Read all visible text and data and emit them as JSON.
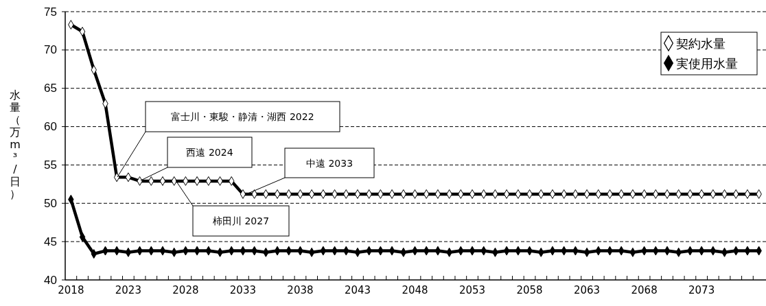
{
  "chart_data": {
    "type": "line",
    "ylabel": "水量（万m³/日）",
    "x": [
      2018,
      2019,
      2020,
      2021,
      2022,
      2023,
      2024,
      2025,
      2026,
      2027,
      2028,
      2029,
      2030,
      2031,
      2032,
      2033,
      2034,
      2035,
      2036,
      2037,
      2038,
      2039,
      2040,
      2041,
      2042,
      2043,
      2044,
      2045,
      2046,
      2047,
      2048,
      2049,
      2050,
      2051,
      2052,
      2053,
      2054,
      2055,
      2056,
      2057,
      2058,
      2059,
      2060,
      2061,
      2062,
      2063,
      2064,
      2065,
      2066,
      2067,
      2068,
      2069,
      2070,
      2071,
      2072,
      2073,
      2074,
      2075,
      2076,
      2077,
      2078
    ],
    "series": [
      {
        "name": "契約水量",
        "color": "#000000",
        "values": [
          73.3,
          72.4,
          67.4,
          63.0,
          53.4,
          53.4,
          52.9,
          52.9,
          52.9,
          52.9,
          52.9,
          52.9,
          52.9,
          52.9,
          52.9,
          51.2,
          51.2,
          51.2,
          51.2,
          51.2,
          51.2,
          51.2,
          51.2,
          51.2,
          51.2,
          51.2,
          51.2,
          51.2,
          51.2,
          51.2,
          51.2,
          51.2,
          51.2,
          51.2,
          51.2,
          51.2,
          51.2,
          51.2,
          51.2,
          51.2,
          51.2,
          51.2,
          51.2,
          51.2,
          51.2,
          51.2,
          51.2,
          51.2,
          51.2,
          51.2,
          51.2,
          51.2,
          51.2,
          51.2,
          51.2,
          51.2,
          51.2,
          51.2,
          51.2,
          51.2,
          51.2
        ]
      },
      {
        "name": "実使用水量",
        "color": "#000000",
        "values": [
          50.5,
          45.6,
          43.4,
          43.8,
          43.8,
          43.6,
          43.8,
          43.8,
          43.8,
          43.6,
          43.8,
          43.8,
          43.8,
          43.6,
          43.8,
          43.8,
          43.8,
          43.6,
          43.8,
          43.8,
          43.8,
          43.6,
          43.8,
          43.8,
          43.8,
          43.6,
          43.8,
          43.8,
          43.8,
          43.6,
          43.8,
          43.8,
          43.8,
          43.6,
          43.8,
          43.8,
          43.8,
          43.6,
          43.8,
          43.8,
          43.8,
          43.6,
          43.8,
          43.8,
          43.8,
          43.6,
          43.8,
          43.8,
          43.8,
          43.6,
          43.8,
          43.8,
          43.8,
          43.6,
          43.8,
          43.8,
          43.8,
          43.6,
          43.8,
          43.8,
          43.8
        ]
      }
    ],
    "xlim": [
      2017.5,
      2078.5
    ],
    "xticks": [
      2018,
      2023,
      2028,
      2033,
      2038,
      2043,
      2048,
      2053,
      2058,
      2063,
      2068,
      2073
    ],
    "ylim": [
      40,
      75
    ],
    "yticks": [
      40,
      45,
      50,
      55,
      60,
      65,
      70,
      75
    ],
    "grid": "y",
    "legend": "top right",
    "marker": "diamond",
    "line_style": "solid",
    "annotations": [
      "富士川・東駿・静清・湖西 2022",
      "西遠 2024",
      "中遠 2033",
      "柿田川 2027"
    ]
  }
}
